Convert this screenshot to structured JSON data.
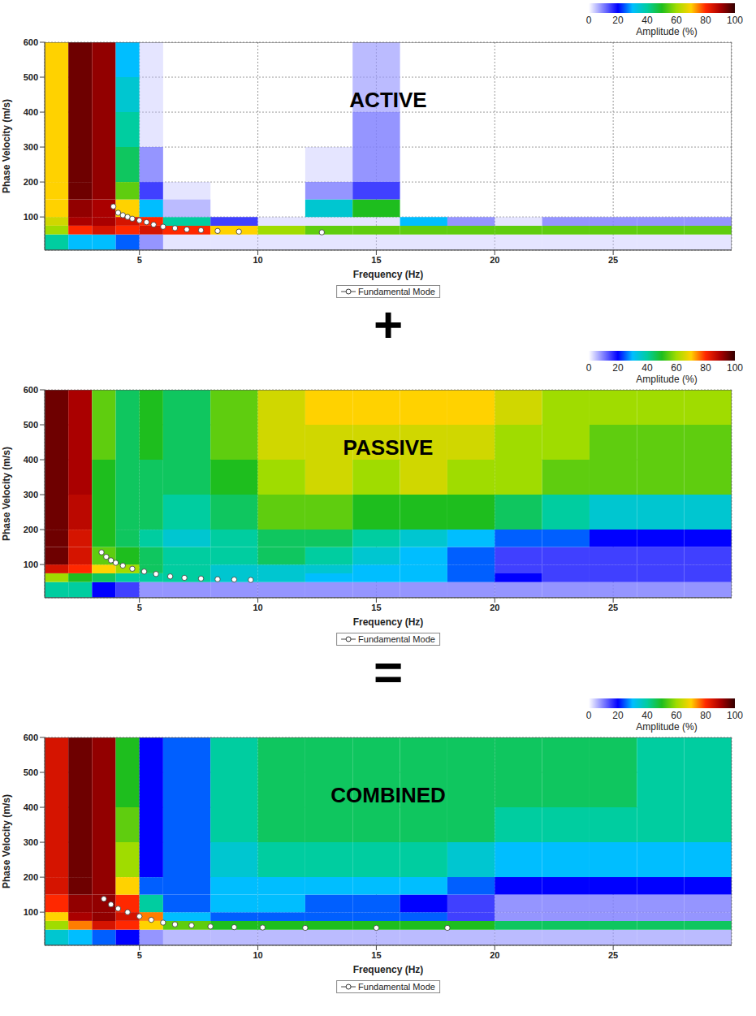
{
  "operators": [
    "+",
    "="
  ],
  "chart_data": [
    {
      "type": "heatmap",
      "title": "ACTIVE",
      "x_label": "Frequency (Hz)",
      "y_label": "Phase Velocity (m/s)",
      "xlim": [
        1,
        30
      ],
      "ylim": [
        5,
        600
      ],
      "xticks": [
        5,
        10,
        15,
        20,
        25
      ],
      "yticks": [
        100,
        200,
        300,
        400,
        500,
        600
      ],
      "grid": true,
      "legend": "bottom",
      "colorbar": {
        "label": "Amplitude (%)",
        "range": [
          0,
          100
        ],
        "ticks": [
          0,
          20,
          40,
          60,
          80,
          100
        ]
      },
      "cells": {
        "x_edges": [
          1,
          2,
          3,
          4,
          5,
          6,
          8,
          10,
          12,
          14,
          16,
          18,
          20,
          22,
          24,
          26,
          28,
          30
        ],
        "y_edges": [
          5,
          50,
          75,
          100,
          150,
          200,
          300,
          400,
          500,
          600
        ],
        "values": [
          [
            40,
            30,
            30,
            25,
            10,
            5,
            5,
            5,
            5,
            5,
            5,
            5,
            5,
            5,
            5,
            5,
            5
          ],
          [
            60,
            80,
            85,
            80,
            85,
            80,
            70,
            60,
            55,
            55,
            55,
            55,
            55,
            55,
            55,
            55,
            55
          ],
          [
            65,
            90,
            90,
            85,
            80,
            40,
            15,
            5,
            5,
            5,
            30,
            10,
            5,
            10,
            10,
            10,
            10
          ],
          [
            70,
            92,
            90,
            70,
            30,
            8,
            0,
            0,
            35,
            50,
            0,
            0,
            0,
            0,
            0,
            0,
            0
          ],
          [
            70,
            95,
            92,
            55,
            15,
            5,
            0,
            0,
            10,
            15,
            0,
            0,
            0,
            0,
            0,
            0,
            0
          ],
          [
            70,
            95,
            92,
            45,
            10,
            0,
            0,
            0,
            5,
            10,
            0,
            0,
            0,
            0,
            0,
            0,
            0
          ],
          [
            70,
            95,
            92,
            40,
            5,
            0,
            0,
            0,
            0,
            10,
            0,
            0,
            0,
            0,
            0,
            0,
            0
          ],
          [
            70,
            95,
            92,
            35,
            5,
            0,
            0,
            0,
            0,
            8,
            0,
            0,
            0,
            0,
            0,
            0,
            0
          ],
          [
            70,
            95,
            92,
            30,
            5,
            0,
            0,
            0,
            0,
            8,
            0,
            0,
            0,
            0,
            0,
            0,
            0
          ]
        ]
      },
      "series": [
        {
          "name": "Fundamental Mode",
          "color": "#ffffff",
          "marker": "circle",
          "x": [
            3.9,
            4.1,
            4.3,
            4.5,
            4.7,
            5,
            5.3,
            5.6,
            6,
            6.5,
            7,
            7.6,
            8.3,
            9.2,
            12.7
          ],
          "values": [
            130,
            112,
            105,
            100,
            95,
            90,
            85,
            78,
            72,
            68,
            64,
            62,
            60,
            58,
            56
          ]
        }
      ]
    },
    {
      "type": "heatmap",
      "title": "PASSIVE",
      "x_label": "Frequency (Hz)",
      "y_label": "Phase Velocity (m/s)",
      "xlim": [
        1,
        30
      ],
      "ylim": [
        5,
        600
      ],
      "xticks": [
        5,
        10,
        15,
        20,
        25
      ],
      "yticks": [
        100,
        200,
        300,
        400,
        500,
        600
      ],
      "grid": true,
      "legend": "bottom",
      "colorbar": {
        "label": "Amplitude (%)",
        "range": [
          0,
          100
        ],
        "ticks": [
          0,
          20,
          40,
          60,
          80,
          100
        ]
      },
      "cells": {
        "x_edges": [
          1,
          2,
          3,
          4,
          5,
          6,
          8,
          10,
          12,
          14,
          16,
          18,
          20,
          22,
          24,
          26,
          28,
          30
        ],
        "y_edges": [
          5,
          50,
          75,
          100,
          150,
          200,
          300,
          400,
          500,
          600
        ],
        "values": [
          [
            40,
            40,
            20,
            15,
            10,
            10,
            10,
            10,
            10,
            10,
            10,
            10,
            10,
            10,
            10,
            10,
            10
          ],
          [
            60,
            50,
            45,
            40,
            40,
            40,
            35,
            35,
            30,
            30,
            30,
            25,
            20,
            15,
            15,
            15,
            15
          ],
          [
            85,
            80,
            70,
            60,
            45,
            40,
            35,
            35,
            35,
            30,
            30,
            25,
            15,
            15,
            15,
            15,
            15
          ],
          [
            95,
            85,
            55,
            50,
            45,
            40,
            40,
            45,
            40,
            35,
            30,
            25,
            15,
            15,
            15,
            15,
            15
          ],
          [
            95,
            85,
            50,
            45,
            40,
            35,
            40,
            45,
            45,
            40,
            35,
            30,
            25,
            25,
            20,
            20,
            20
          ],
          [
            95,
            88,
            50,
            45,
            45,
            40,
            45,
            55,
            55,
            50,
            50,
            50,
            45,
            40,
            35,
            35,
            35
          ],
          [
            95,
            90,
            50,
            45,
            45,
            45,
            50,
            60,
            65,
            60,
            65,
            60,
            60,
            55,
            55,
            55,
            55
          ],
          [
            95,
            90,
            55,
            45,
            50,
            45,
            55,
            65,
            65,
            65,
            65,
            65,
            60,
            60,
            55,
            55,
            55
          ],
          [
            95,
            90,
            55,
            45,
            50,
            45,
            55,
            65,
            70,
            70,
            70,
            70,
            65,
            60,
            60,
            60,
            60
          ]
        ]
      },
      "series": [
        {
          "name": "Fundamental Mode",
          "color": "#ffffff",
          "marker": "circle",
          "x": [
            3.4,
            3.6,
            3.8,
            4,
            4.3,
            4.7,
            5.2,
            5.7,
            6.3,
            6.9,
            7.6,
            8.3,
            9,
            9.7
          ],
          "values": [
            135,
            122,
            112,
            105,
            97,
            88,
            80,
            73,
            66,
            62,
            60,
            58,
            57,
            56
          ]
        }
      ]
    },
    {
      "type": "heatmap",
      "title": "COMBINED",
      "x_label": "Frequency (Hz)",
      "y_label": "Phase Velocity (m/s)",
      "xlim": [
        1,
        30
      ],
      "ylim": [
        5,
        600
      ],
      "xticks": [
        5,
        10,
        15,
        20,
        25
      ],
      "yticks": [
        100,
        200,
        300,
        400,
        500,
        600
      ],
      "grid": true,
      "legend": "bottom",
      "colorbar": {
        "label": "Amplitude (%)",
        "range": [
          0,
          100
        ],
        "ticks": [
          0,
          20,
          40,
          60,
          80,
          100
        ]
      },
      "cells": {
        "x_edges": [
          1,
          2,
          3,
          4,
          5,
          6,
          8,
          10,
          12,
          14,
          16,
          18,
          20,
          22,
          24,
          26,
          28,
          30
        ],
        "y_edges": [
          5,
          50,
          75,
          100,
          150,
          200,
          300,
          400,
          500,
          600
        ],
        "values": [
          [
            35,
            30,
            25,
            20,
            10,
            8,
            8,
            8,
            8,
            8,
            8,
            8,
            8,
            8,
            8,
            8,
            8
          ],
          [
            60,
            75,
            85,
            80,
            70,
            55,
            50,
            50,
            50,
            50,
            50,
            50,
            45,
            45,
            45,
            45,
            45
          ],
          [
            70,
            90,
            92,
            85,
            75,
            30,
            25,
            25,
            25,
            25,
            25,
            15,
            10,
            10,
            10,
            10,
            10
          ],
          [
            80,
            92,
            92,
            80,
            40,
            25,
            30,
            30,
            25,
            25,
            20,
            15,
            10,
            10,
            10,
            10,
            10
          ],
          [
            85,
            95,
            92,
            70,
            25,
            25,
            30,
            30,
            30,
            30,
            30,
            25,
            20,
            20,
            20,
            20,
            20
          ],
          [
            85,
            95,
            92,
            60,
            20,
            25,
            35,
            40,
            40,
            40,
            40,
            35,
            30,
            30,
            30,
            30,
            30
          ],
          [
            85,
            95,
            92,
            55,
            20,
            25,
            40,
            45,
            45,
            45,
            45,
            45,
            40,
            40,
            40,
            40,
            40
          ],
          [
            85,
            95,
            92,
            50,
            20,
            25,
            40,
            45,
            45,
            45,
            45,
            45,
            45,
            45,
            45,
            40,
            40
          ],
          [
            85,
            95,
            92,
            50,
            20,
            25,
            40,
            45,
            45,
            45,
            45,
            45,
            45,
            45,
            45,
            40,
            40
          ]
        ]
      },
      "series": [
        {
          "name": "Fundamental Mode",
          "color": "#ffffff",
          "marker": "circle",
          "x": [
            3.5,
            3.8,
            4.1,
            4.5,
            5,
            5.5,
            6,
            6.5,
            7.2,
            8,
            9,
            10.2,
            12,
            15,
            18
          ],
          "values": [
            138,
            122,
            110,
            100,
            88,
            78,
            70,
            65,
            62,
            59,
            57,
            56,
            55,
            55,
            55
          ]
        }
      ]
    }
  ]
}
